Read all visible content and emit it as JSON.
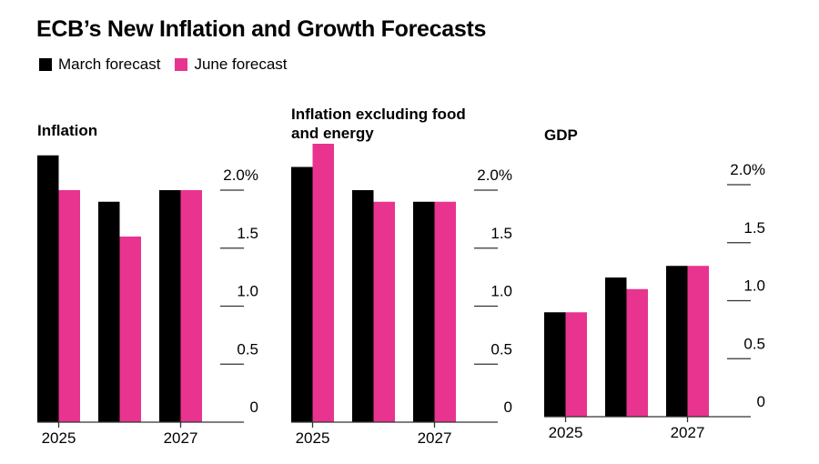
{
  "header": {
    "title": "ECB’s New Inflation and Growth Forecasts"
  },
  "legend": [
    {
      "label": "March forecast",
      "color": "#000000"
    },
    {
      "label": "June forecast",
      "color": "#e8348f"
    }
  ],
  "chart_data": [
    {
      "type": "bar",
      "title": "Inflation",
      "title_lines": [
        "Inflation"
      ],
      "categories": [
        "2025",
        "2026",
        "2027"
      ],
      "x_tick_labels": [
        "2025",
        "",
        "2027"
      ],
      "series": [
        {
          "name": "March forecast",
          "color": "#000000",
          "values": [
            2.3,
            1.9,
            2.0
          ]
        },
        {
          "name": "June forecast",
          "color": "#e8348f",
          "values": [
            2.0,
            1.6,
            2.0
          ]
        }
      ],
      "yticks": [
        0,
        0.5,
        1.0,
        1.5,
        2.0
      ],
      "ytick_labels": [
        "0",
        "0.5",
        "1.0",
        "1.5",
        "2.0%"
      ],
      "ylim": [
        0,
        2.4
      ],
      "xlabel": "",
      "ylabel": "",
      "grid": false,
      "legend": "top-left"
    },
    {
      "type": "bar",
      "title": "Inflation excluding food and energy",
      "title_lines": [
        "Inflation excluding food",
        "and energy"
      ],
      "categories": [
        "2025",
        "2026",
        "2027"
      ],
      "x_tick_labels": [
        "2025",
        "",
        "2027"
      ],
      "series": [
        {
          "name": "March forecast",
          "color": "#000000",
          "values": [
            2.2,
            2.0,
            1.9
          ]
        },
        {
          "name": "June forecast",
          "color": "#e8348f",
          "values": [
            2.4,
            1.9,
            1.9
          ]
        }
      ],
      "yticks": [
        0,
        0.5,
        1.0,
        1.5,
        2.0
      ],
      "ytick_labels": [
        "0",
        "0.5",
        "1.0",
        "1.5",
        "2.0%"
      ],
      "ylim": [
        0,
        2.4
      ],
      "xlabel": "",
      "ylabel": "",
      "grid": false,
      "legend": "top-left"
    },
    {
      "type": "bar",
      "title": "GDP",
      "title_lines": [
        "GDP"
      ],
      "categories": [
        "2025",
        "2026",
        "2027"
      ],
      "x_tick_labels": [
        "2025",
        "",
        "2027"
      ],
      "series": [
        {
          "name": "March forecast",
          "color": "#000000",
          "values": [
            0.9,
            1.2,
            1.3
          ]
        },
        {
          "name": "June forecast",
          "color": "#e8348f",
          "values": [
            0.9,
            1.1,
            1.3
          ]
        }
      ],
      "yticks": [
        0,
        0.5,
        1.0,
        1.5,
        2.0
      ],
      "ytick_labels": [
        "0",
        "0.5",
        "1.0",
        "1.5",
        "2.0%"
      ],
      "ylim": [
        0,
        2.4
      ],
      "xlabel": "",
      "ylabel": "",
      "grid": false,
      "legend": "top-left"
    }
  ]
}
